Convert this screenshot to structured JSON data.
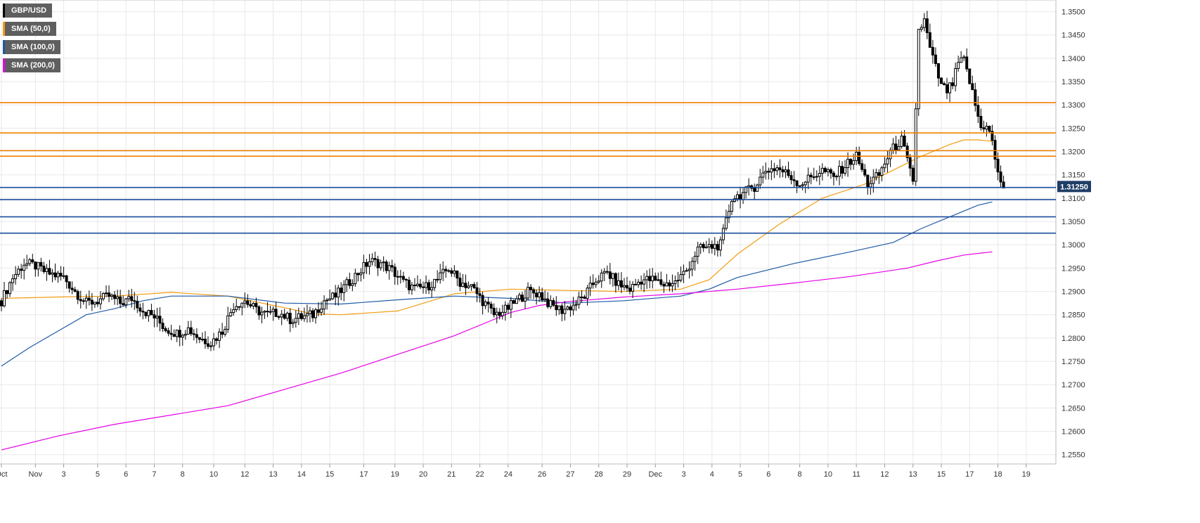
{
  "chart_data": {
    "type": "candlestick",
    "title": "",
    "xlabel": "",
    "ylabel": "",
    "ylim": [
      1.253,
      1.3525
    ],
    "grid": true,
    "legend_position": "top-left",
    "colors": {
      "up": "#ffffff",
      "down": "#000000",
      "sma50": "#f39c12",
      "sma100": "#1f5aa6",
      "sma200": "#e600e6",
      "resistance": "#f08000",
      "support": "#1a4d9c",
      "grid": "#e8e8e8"
    },
    "legend": [
      {
        "label": "GBP/USD",
        "color": "#000000"
      },
      {
        "label": "SMA (50,0)",
        "color": "#f39c12"
      },
      {
        "label": "SMA (100,0)",
        "color": "#1f5aa6"
      },
      {
        "label": "SMA (200,0)",
        "color": "#e600e6"
      }
    ],
    "current_price_label": "1.31250",
    "current_price": 1.3125,
    "y_ticks": [
      "1.2550",
      "1.2600",
      "1.2650",
      "1.2700",
      "1.2750",
      "1.2800",
      "1.2850",
      "1.2900",
      "1.2950",
      "1.3000",
      "1.3050",
      "1.3100",
      "1.3150",
      "1.3200",
      "1.3250",
      "1.3300",
      "1.3350",
      "1.3400",
      "1.3450",
      "1.3500"
    ],
    "x_ticks": [
      "Oct",
      "Nov",
      "3",
      "5",
      "6",
      "7",
      "8",
      "10",
      "12",
      "13",
      "14",
      "15",
      "17",
      "19",
      "20",
      "21",
      "22",
      "24",
      "26",
      "27",
      "28",
      "29",
      "Dec",
      "3",
      "4",
      "5",
      "6",
      "8",
      "10",
      "11",
      "12",
      "13",
      "15",
      "17",
      "18",
      "19"
    ],
    "x_tick_index": [
      0,
      12,
      22,
      34,
      44,
      54,
      64,
      75,
      86,
      96,
      106,
      116,
      128,
      139,
      149,
      159,
      169,
      179,
      191,
      201,
      211,
      221,
      231,
      241,
      251,
      261,
      271,
      282,
      292,
      302,
      312,
      322,
      332,
      342,
      352,
      362
    ],
    "x_range": [
      0,
      370
    ],
    "resistance_levels": [
      1.3305,
      1.324,
      1.3202,
      1.319
    ],
    "support_levels": [
      1.3123,
      1.3097,
      1.306,
      1.3025
    ],
    "sma_series": [
      {
        "name": "SMA (50,0)",
        "x": [
          0,
          20,
          40,
          60,
          80,
          100,
          110,
          120,
          140,
          160,
          180,
          200,
          220,
          240,
          250,
          260,
          275,
          290,
          305,
          315,
          325,
          335,
          340,
          345,
          350
        ],
        "y": [
          1.2885,
          1.2888,
          1.289,
          1.2898,
          1.289,
          1.2865,
          1.2852,
          1.285,
          1.2858,
          1.2895,
          1.2905,
          1.2902,
          1.29,
          1.2905,
          1.2925,
          1.298,
          1.3045,
          1.31,
          1.313,
          1.316,
          1.319,
          1.3215,
          1.3225,
          1.3225,
          1.3222
        ]
      },
      {
        "name": "SMA (100,0)",
        "x": [
          0,
          10,
          20,
          30,
          40,
          50,
          60,
          80,
          100,
          120,
          140,
          160,
          180,
          200,
          220,
          240,
          250,
          260,
          280,
          300,
          315,
          325,
          335,
          345,
          350
        ],
        "y": [
          1.274,
          1.278,
          1.2815,
          1.285,
          1.2863,
          1.288,
          1.289,
          1.289,
          1.2875,
          1.2873,
          1.2882,
          1.289,
          1.2885,
          1.2875,
          1.288,
          1.289,
          1.2905,
          1.293,
          1.296,
          1.2985,
          1.3005,
          1.3035,
          1.306,
          1.3085,
          1.3092
        ]
      },
      {
        "name": "SMA (200,0)",
        "x": [
          0,
          20,
          40,
          60,
          80,
          100,
          120,
          140,
          160,
          170,
          180,
          190,
          200,
          220,
          240,
          260,
          280,
          300,
          320,
          330,
          340,
          350
        ],
        "y": [
          1.256,
          1.259,
          1.2615,
          1.2635,
          1.2655,
          1.269,
          1.2725,
          1.2765,
          1.2805,
          1.283,
          1.2855,
          1.287,
          1.2878,
          1.2888,
          1.2895,
          1.2905,
          1.2918,
          1.2932,
          1.295,
          1.2965,
          1.2978,
          1.2985
        ]
      }
    ],
    "candles_anchor_close": [
      [
        0,
        1.288
      ],
      [
        4,
        1.293
      ],
      [
        8,
        1.296
      ],
      [
        12,
        1.2955
      ],
      [
        16,
        1.294
      ],
      [
        22,
        1.293
      ],
      [
        26,
        1.29
      ],
      [
        30,
        1.2875
      ],
      [
        34,
        1.288
      ],
      [
        38,
        1.289
      ],
      [
        42,
        1.2875
      ],
      [
        46,
        1.2885
      ],
      [
        50,
        1.286
      ],
      [
        54,
        1.2845
      ],
      [
        58,
        1.282
      ],
      [
        62,
        1.281
      ],
      [
        66,
        1.282
      ],
      [
        70,
        1.28
      ],
      [
        74,
        1.279
      ],
      [
        78,
        1.2815
      ],
      [
        82,
        1.287
      ],
      [
        86,
        1.288
      ],
      [
        90,
        1.286
      ],
      [
        94,
        1.285
      ],
      [
        98,
        1.2855
      ],
      [
        102,
        1.284
      ],
      [
        106,
        1.2845
      ],
      [
        110,
        1.285
      ],
      [
        114,
        1.288
      ],
      [
        118,
        1.289
      ],
      [
        122,
        1.2915
      ],
      [
        126,
        1.294
      ],
      [
        130,
        1.2965
      ],
      [
        134,
        1.296
      ],
      [
        138,
        1.2945
      ],
      [
        142,
        1.292
      ],
      [
        146,
        1.2905
      ],
      [
        150,
        1.291
      ],
      [
        154,
        1.2925
      ],
      [
        158,
        1.295
      ],
      [
        162,
        1.292
      ],
      [
        166,
        1.291
      ],
      [
        170,
        1.288
      ],
      [
        174,
        1.285
      ],
      [
        178,
        1.286
      ],
      [
        182,
        1.288
      ],
      [
        186,
        1.29
      ],
      [
        190,
        1.2895
      ],
      [
        194,
        1.287
      ],
      [
        198,
        1.286
      ],
      [
        202,
        1.287
      ],
      [
        206,
        1.289
      ],
      [
        210,
        1.2925
      ],
      [
        214,
        1.294
      ],
      [
        218,
        1.2915
      ],
      [
        222,
        1.2905
      ],
      [
        226,
        1.2925
      ],
      [
        230,
        1.2925
      ],
      [
        234,
        1.2915
      ],
      [
        238,
        1.292
      ],
      [
        242,
        1.2945
      ],
      [
        246,
        1.299
      ],
      [
        250,
        1.2995
      ],
      [
        254,
        1.3
      ],
      [
        256,
        1.305
      ],
      [
        258,
        1.31
      ],
      [
        262,
        1.311
      ],
      [
        266,
        1.3125
      ],
      [
        270,
        1.316
      ],
      [
        274,
        1.3165
      ],
      [
        278,
        1.315
      ],
      [
        282,
        1.313
      ],
      [
        286,
        1.3145
      ],
      [
        290,
        1.316
      ],
      [
        294,
        1.3145
      ],
      [
        298,
        1.317
      ],
      [
        302,
        1.319
      ],
      [
        306,
        1.313
      ],
      [
        310,
        1.315
      ],
      [
        314,
        1.32
      ],
      [
        318,
        1.3225
      ],
      [
        320,
        1.318
      ],
      [
        322,
        1.313
      ],
      [
        324,
        1.346
      ],
      [
        326,
        1.348
      ],
      [
        328,
        1.342
      ],
      [
        330,
        1.338
      ],
      [
        332,
        1.334
      ],
      [
        334,
        1.333
      ],
      [
        336,
        1.3345
      ],
      [
        338,
        1.339
      ],
      [
        340,
        1.3395
      ],
      [
        342,
        1.335
      ],
      [
        344,
        1.33
      ],
      [
        346,
        1.325
      ],
      [
        348,
        1.326
      ],
      [
        350,
        1.322
      ],
      [
        352,
        1.315
      ],
      [
        354,
        1.3125
      ]
    ]
  }
}
